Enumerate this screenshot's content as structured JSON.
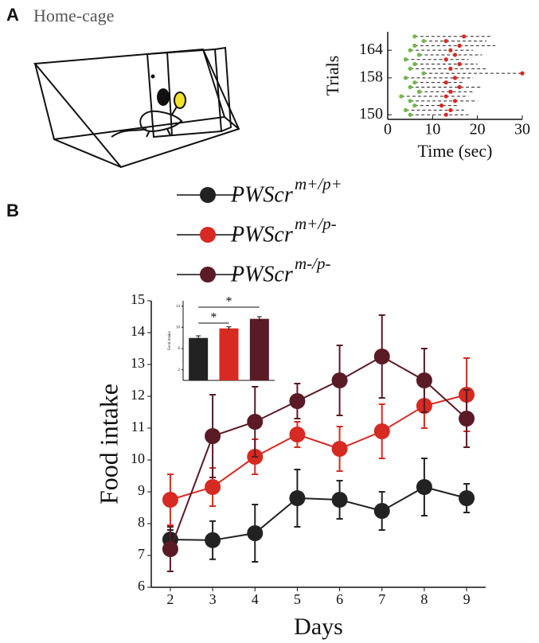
{
  "figure": {
    "panel_a_label": "A",
    "panel_b_label": "B",
    "cage_label": "Home-cage"
  },
  "chart_data": [
    {
      "type": "raster",
      "xlabel": "Time (sec)",
      "ylabel": "Trials",
      "xlim": [
        0,
        30
      ],
      "xticks": [
        0,
        10,
        20,
        30
      ],
      "ylim": [
        149,
        168
      ],
      "yticks": [
        150,
        158,
        164
      ],
      "y": [
        150,
        151,
        152,
        153,
        154,
        155,
        156,
        157,
        158,
        159,
        160,
        161,
        162,
        163,
        164,
        165,
        166,
        167
      ],
      "series": [
        {
          "color": "#72b84a",
          "x": [
            5,
            4,
            6,
            5,
            3,
            7,
            5,
            6,
            4,
            8,
            5,
            6,
            4,
            7,
            5,
            6,
            8,
            6
          ]
        },
        {
          "color": "#d9281e",
          "x": [
            13,
            14,
            12,
            15,
            13,
            14,
            16,
            13,
            15,
            30,
            14,
            16,
            13,
            15,
            14,
            16,
            13,
            17
          ]
        }
      ],
      "trial_end": [
        18,
        17,
        16,
        20,
        18,
        19,
        21,
        17,
        19,
        30,
        22,
        20,
        18,
        21,
        19,
        24,
        22,
        23
      ]
    },
    {
      "type": "line",
      "xlabel": "Days",
      "ylabel": "Food intake",
      "x": [
        2,
        3,
        4,
        5,
        6,
        7,
        8,
        9
      ],
      "xlim": [
        1.55,
        9.45
      ],
      "xticks": [
        2,
        3,
        4,
        5,
        6,
        7,
        8,
        9
      ],
      "ylim": [
        6,
        15
      ],
      "yticks": [
        6,
        7,
        8,
        9,
        10,
        11,
        12,
        13,
        14,
        15
      ],
      "series": [
        {
          "name": "PWScr",
          "superscript": "m+/p+",
          "color": "#222222",
          "values": [
            7.5,
            7.48,
            7.7,
            8.8,
            8.75,
            8.4,
            9.15,
            8.8
          ],
          "errors": [
            0.3,
            0.6,
            0.9,
            0.9,
            0.6,
            0.6,
            0.9,
            0.45
          ]
        },
        {
          "name": "PWScr",
          "superscript": "m+/p-",
          "color": "#d62a22",
          "values": [
            8.75,
            9.15,
            10.1,
            10.8,
            10.35,
            10.9,
            11.7,
            12.05
          ],
          "errors": [
            0.8,
            0.6,
            0.55,
            0.4,
            0.7,
            0.85,
            0.7,
            1.15
          ]
        },
        {
          "name": "PWScr",
          "superscript": "m-/p-",
          "color": "#5a1a26",
          "values": [
            7.2,
            10.75,
            11.2,
            11.85,
            12.5,
            13.25,
            12.5,
            11.3
          ],
          "errors": [
            0.7,
            1.3,
            1.1,
            0.55,
            1.1,
            1.3,
            1.0,
            0.9
          ]
        }
      ]
    },
    {
      "type": "bar",
      "ylabel": "Food intake",
      "categories": [
        null,
        null,
        null
      ],
      "values": [
        8,
        9.8,
        11.6
      ],
      "errors": [
        0.4,
        0.3,
        0.4
      ],
      "colors": [
        "#222222",
        "#d62a22",
        "#5a1a26"
      ],
      "ylim": [
        0,
        15
      ],
      "yticks": [
        2,
        6,
        10,
        14
      ],
      "annotations": [
        "*",
        "*"
      ]
    }
  ]
}
